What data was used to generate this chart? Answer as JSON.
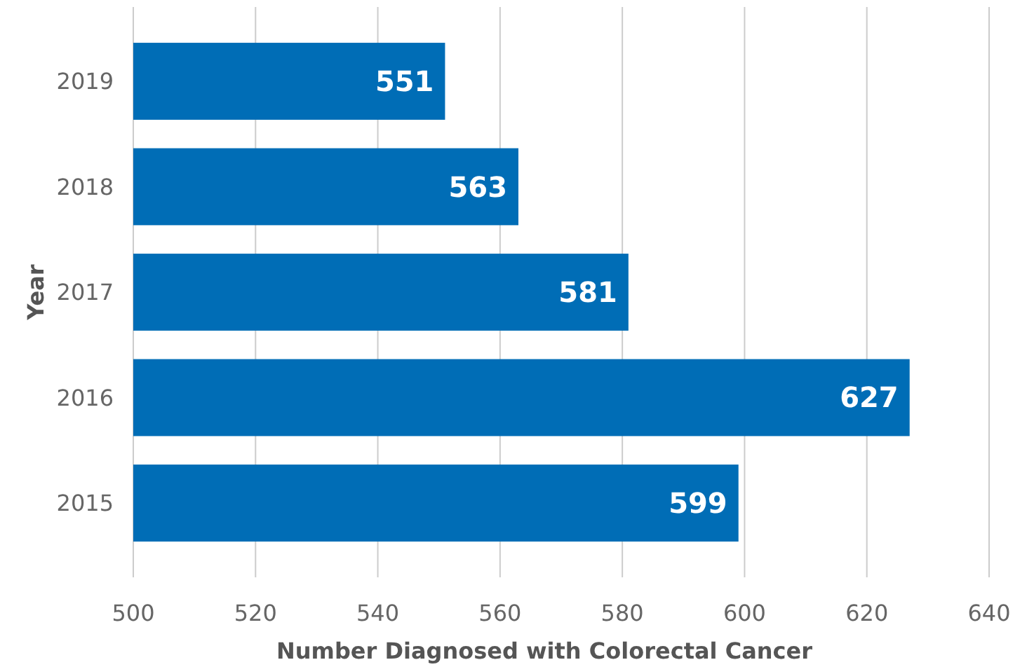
{
  "chart_data": {
    "type": "bar",
    "orientation": "horizontal",
    "xlabel": "Number Diagnosed with Colorectal Cancer",
    "ylabel": "Year",
    "categories": [
      "2019",
      "2018",
      "2017",
      "2016",
      "2015"
    ],
    "values": [
      551,
      563,
      581,
      627,
      599
    ],
    "color": "#006db6",
    "xlim": [
      500,
      640
    ],
    "xticks": [
      500,
      520,
      540,
      560,
      580,
      600,
      620,
      640
    ],
    "grid": "x",
    "data_labels": true
  }
}
